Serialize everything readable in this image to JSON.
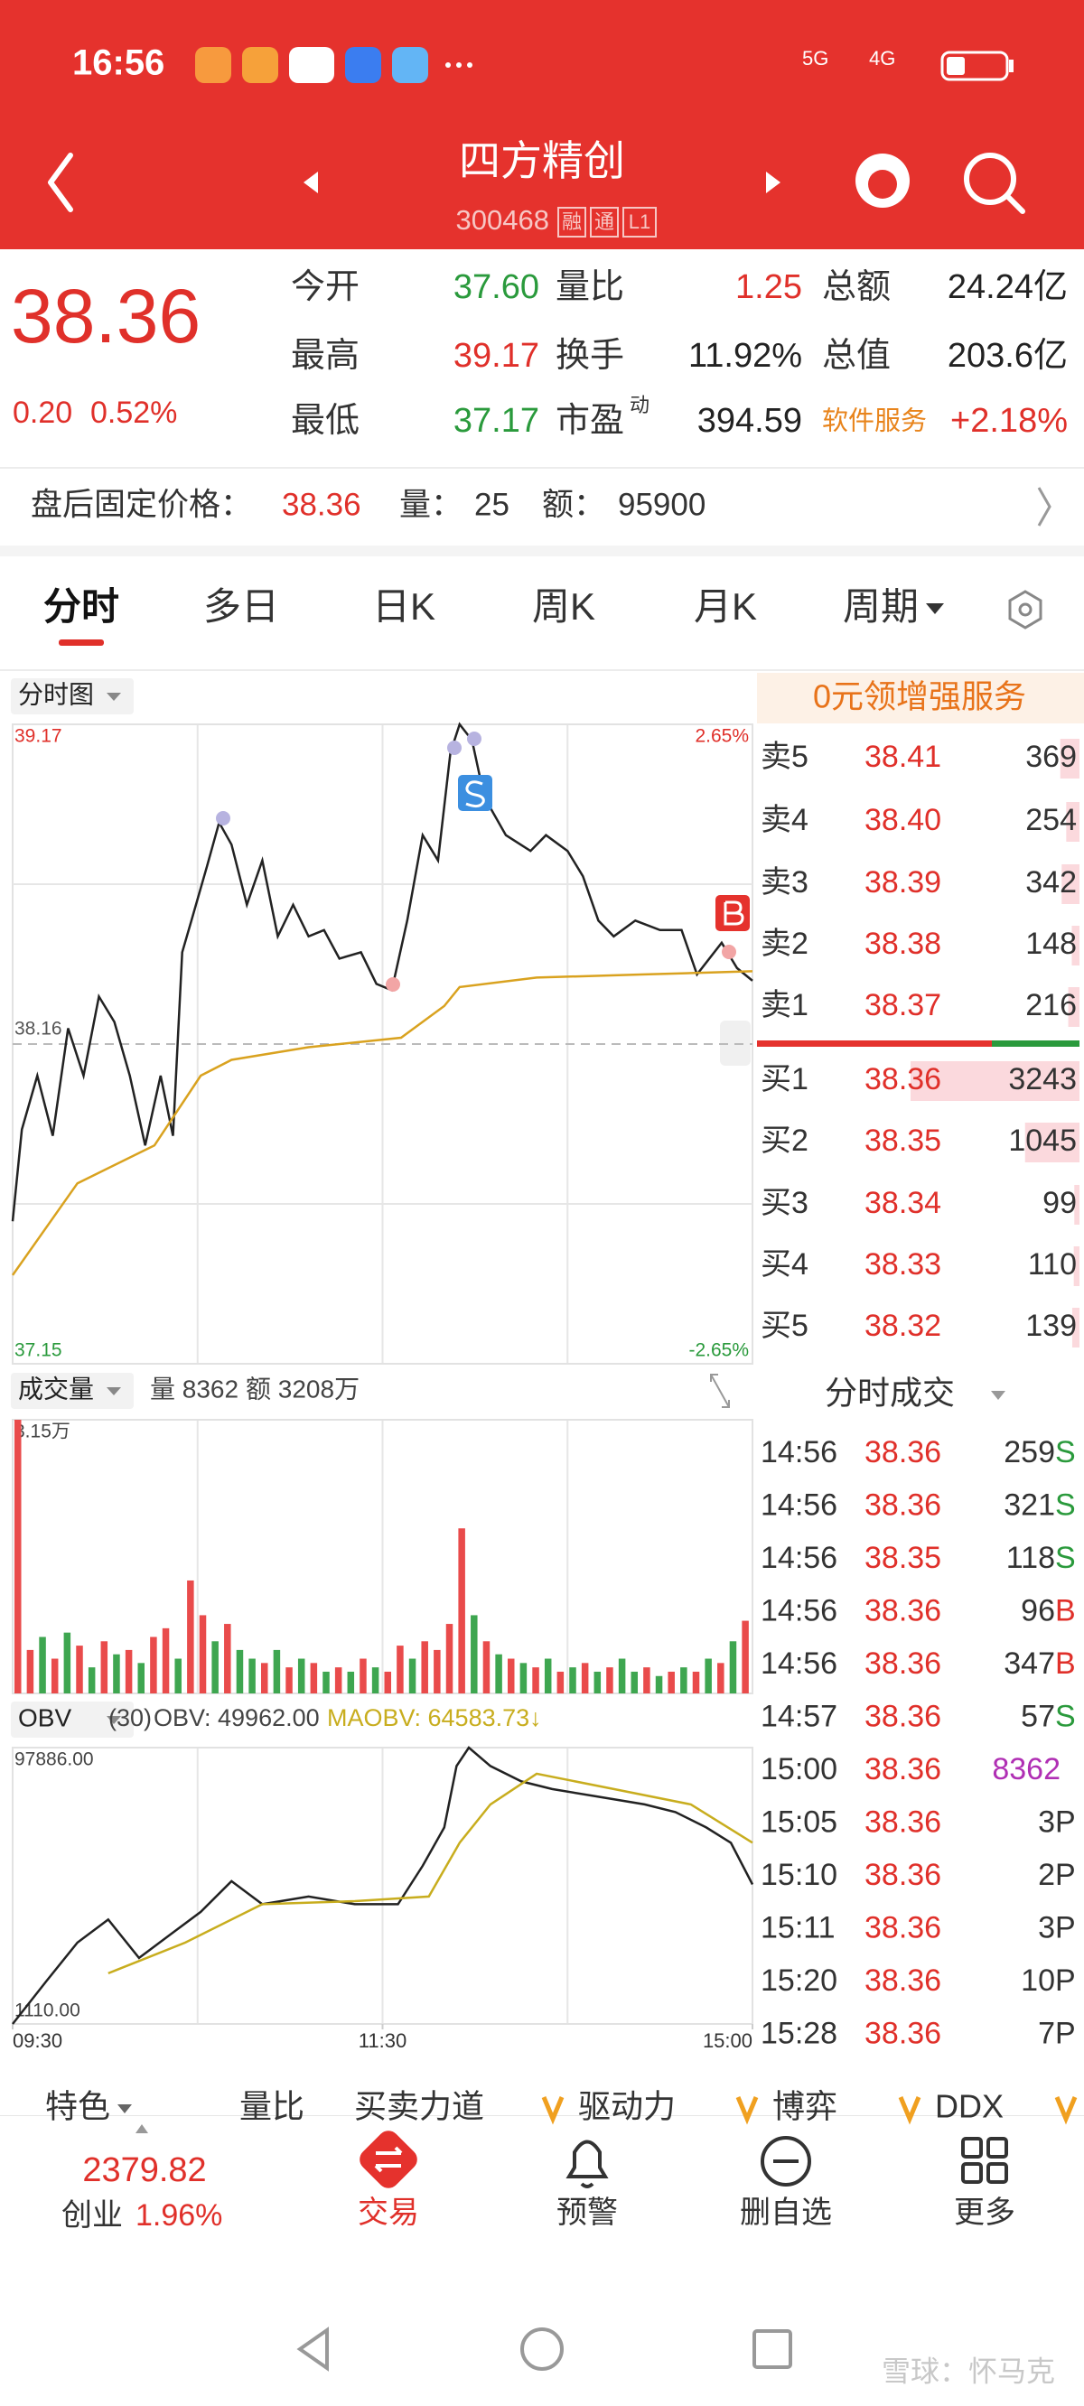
{
  "status_bar": {
    "time": "16:56",
    "net1": "5G",
    "net2": "4G"
  },
  "header": {
    "title": "四方精创",
    "code": "300468",
    "tags": [
      "融",
      "通",
      "L1"
    ]
  },
  "quote": {
    "price": "38.36",
    "change": "0.20",
    "change_pct": "0.52%",
    "rows": [
      [
        {
          "label": "今开",
          "value": "37.60",
          "color": "#2a9a3c"
        },
        {
          "label": "量比",
          "value": "1.25",
          "color": "#e0302a"
        },
        {
          "label": "总额",
          "value": "24.24亿",
          "color": "#222222"
        }
      ],
      [
        {
          "label": "最高",
          "value": "39.17",
          "color": "#e0302a"
        },
        {
          "label": "换手",
          "value": "11.92%",
          "color": "#222222"
        },
        {
          "label": "总值",
          "value": "203.6亿",
          "color": "#222222"
        }
      ],
      [
        {
          "label": "最低",
          "value": "37.17",
          "color": "#2a9a3c"
        },
        {
          "label": "市盈",
          "sup": "动",
          "value": "394.59",
          "color": "#222222"
        },
        {
          "label": "软件服务",
          "label_color": "#e8841c",
          "value": "+2.18%",
          "color": "#e0302a"
        }
      ]
    ]
  },
  "after_hours": {
    "label": "盘后固定价格：",
    "price": "38.36",
    "vol_label": "量：",
    "vol": "25",
    "amt_label": "额：",
    "amt": "95900"
  },
  "tabs": {
    "items": [
      "分时",
      "多日",
      "日K",
      "周K",
      "月K",
      "周期"
    ],
    "selected": 0
  },
  "chart_data": [
    {
      "type": "line",
      "title": "分时图",
      "xlim": [
        0,
        240
      ],
      "ylim": [
        37.15,
        39.17
      ],
      "yticks": [
        37.15,
        38.16,
        39.17
      ],
      "ytick_colors": [
        "#2a9a3c",
        "#555555",
        "#e0302a"
      ],
      "y2lim": [
        -2.65,
        2.65
      ],
      "y2ticks": [
        {
          "value": -2.65,
          "label": "-2.65%"
        },
        {
          "value": 2.65,
          "label": "2.65%"
        }
      ],
      "y2tick_colors": [
        "#2a9a3c",
        "#e0302a"
      ],
      "ygrid": [
        37.655,
        38.665
      ],
      "xgrid": [
        60,
        120,
        180
      ],
      "series": [
        {
          "name": "价格",
          "color": "#222222",
          "x": [
            0,
            3,
            8,
            13,
            18,
            23,
            28,
            33,
            38,
            43,
            48,
            52,
            55,
            58,
            63,
            67,
            71,
            76,
            81,
            86,
            91,
            96,
            101,
            106,
            113,
            118,
            123,
            128,
            133,
            138,
            142,
            145,
            149,
            153,
            160,
            168,
            173,
            180,
            185,
            190,
            195,
            202,
            210,
            217,
            222,
            230,
            235,
            240
          ],
          "values": [
            37.6,
            37.89,
            38.06,
            37.87,
            38.21,
            38.06,
            38.31,
            38.23,
            38.06,
            37.84,
            38.06,
            37.87,
            38.45,
            38.55,
            38.72,
            38.86,
            38.79,
            38.6,
            38.74,
            38.5,
            38.6,
            38.5,
            38.52,
            38.43,
            38.45,
            38.35,
            38.33,
            38.55,
            38.82,
            38.74,
            39.08,
            39.17,
            39.12,
            38.94,
            38.82,
            38.77,
            38.82,
            38.77,
            38.69,
            38.55,
            38.5,
            38.55,
            38.52,
            38.52,
            38.38,
            38.48,
            38.4,
            38.36
          ]
        },
        {
          "name": "均价",
          "color": "#d9a21f",
          "x": [
            0,
            21,
            46,
            61,
            71,
            96,
            126,
            140,
            145,
            170,
            205,
            240
          ],
          "values": [
            37.43,
            37.72,
            37.84,
            38.06,
            38.11,
            38.15,
            38.18,
            38.28,
            38.34,
            38.37,
            38.38,
            38.39
          ]
        }
      ]
    },
    {
      "type": "bar",
      "title": "成交量",
      "info": [
        "量 8362",
        "额 3208万"
      ],
      "xlim": [
        0,
        240
      ],
      "ylim": [
        0,
        31500
      ],
      "yticks": [
        {
          "value": 31500,
          "label": "3.15万"
        }
      ],
      "xgrid": [
        60,
        120,
        180
      ],
      "x": [
        0,
        4,
        8,
        12,
        16,
        20,
        24,
        28,
        32,
        36,
        40,
        44,
        48,
        52,
        56,
        60,
        64,
        68,
        72,
        76,
        80,
        84,
        88,
        92,
        96,
        100,
        104,
        108,
        112,
        116,
        120,
        124,
        128,
        132,
        136,
        140,
        144,
        148,
        152,
        156,
        160,
        164,
        168,
        172,
        176,
        180,
        184,
        188,
        192,
        196,
        200,
        204,
        208,
        212,
        216,
        220,
        224,
        228,
        232,
        236
      ],
      "values": [
        31500,
        5000,
        6500,
        4000,
        7000,
        5500,
        3000,
        6000,
        4500,
        5000,
        3500,
        6500,
        7500,
        4000,
        13000,
        9000,
        6000,
        8000,
        5000,
        4000,
        3500,
        5000,
        3000,
        4000,
        3500,
        2500,
        3000,
        2500,
        4000,
        3000,
        2500,
        5500,
        4000,
        6000,
        5000,
        8000,
        19000,
        9000,
        6000,
        4500,
        4000,
        3500,
        3000,
        4000,
        2500,
        3000,
        3500,
        2500,
        3000,
        4000,
        2500,
        3000,
        2000,
        2500,
        3000,
        2500,
        4000,
        3500,
        6000,
        8362
      ],
      "colors": [
        "#e94b4b",
        "#e94b4b",
        "#3ea650",
        "#e94b4b",
        "#3ea650",
        "#e94b4b",
        "#3ea650",
        "#e94b4b",
        "#3ea650",
        "#e94b4b",
        "#3ea650",
        "#e94b4b",
        "#e94b4b",
        "#3ea650",
        "#e94b4b",
        "#e94b4b",
        "#3ea650",
        "#e94b4b",
        "#3ea650",
        "#3ea650",
        "#e94b4b",
        "#3ea650",
        "#e94b4b",
        "#3ea650",
        "#e94b4b",
        "#3ea650",
        "#e94b4b",
        "#3ea650",
        "#e94b4b",
        "#3ea650",
        "#e94b4b",
        "#e94b4b",
        "#3ea650",
        "#e94b4b",
        "#e94b4b",
        "#e94b4b",
        "#e94b4b",
        "#3ea650",
        "#e94b4b",
        "#3ea650",
        "#e94b4b",
        "#3ea650",
        "#e94b4b",
        "#3ea650",
        "#e94b4b",
        "#3ea650",
        "#e94b4b",
        "#3ea650",
        "#e94b4b",
        "#3ea650",
        "#3ea650",
        "#e94b4b",
        "#3ea650",
        "#e94b4b",
        "#3ea650",
        "#e94b4b",
        "#3ea650",
        "#e94b4b",
        "#3ea650",
        "#e94b4b"
      ]
    },
    {
      "type": "line",
      "title": "OBV",
      "params": "(30)",
      "xlim": [
        0,
        240
      ],
      "ylim": [
        1110,
        97886
      ],
      "yticks": [
        {
          "value": 1110,
          "label": "1110.00"
        },
        {
          "value": 97886,
          "label": "97886.00"
        }
      ],
      "xgrid": [
        60,
        120,
        180
      ],
      "xticks": [
        {
          "value": 0,
          "label": "09:30"
        },
        {
          "value": 120,
          "label": "11:30"
        },
        {
          "value": 240,
          "label": "15:00"
        }
      ],
      "series": [
        {
          "name": "OBV: 49962.00",
          "color": "#222222",
          "x": [
            0,
            11,
            21,
            31,
            41,
            51,
            61,
            71,
            81,
            96,
            111,
            125,
            133,
            140,
            144,
            148,
            155,
            165,
            175,
            190,
            205,
            215,
            225,
            233,
            240
          ],
          "values": [
            1110,
            16163,
            29603,
            37667,
            24227,
            32291,
            40355,
            51107,
            43043,
            45731,
            43043,
            43043,
            56483,
            69923,
            91427,
            97886,
            91427,
            86051,
            83363,
            80675,
            77987,
            75299,
            69923,
            64547,
            49962
          ]
        },
        {
          "name": "MAOBV: 64583.73↓",
          "color": "#c8ad1e",
          "x": [
            31,
            56,
            81,
            111,
            135,
            145,
            155,
            170,
            195,
            220,
            240
          ],
          "values": [
            18851,
            29603,
            43043,
            44118,
            45731,
            64547,
            77987,
            88739,
            83363,
            77987,
            64583.73
          ]
        }
      ]
    }
  ],
  "order_book": {
    "banner": "0元领增强服务",
    "asks": [
      {
        "label": "卖5",
        "price": "38.41",
        "volume": 369
      },
      {
        "label": "卖4",
        "price": "38.40",
        "volume": 254
      },
      {
        "label": "卖3",
        "price": "38.39",
        "volume": 342
      },
      {
        "label": "卖2",
        "price": "38.38",
        "volume": 148
      },
      {
        "label": "卖1",
        "price": "38.37",
        "volume": 216
      }
    ],
    "bids": [
      {
        "label": "买1",
        "price": "38.36",
        "volume": 3243
      },
      {
        "label": "买2",
        "price": "38.35",
        "volume": 1045
      },
      {
        "label": "买3",
        "price": "38.34",
        "volume": 99
      },
      {
        "label": "买4",
        "price": "38.33",
        "volume": 110
      },
      {
        "label": "买5",
        "price": "38.32",
        "volume": 139
      }
    ]
  },
  "trades": {
    "title": "分时成交",
    "side_colors": {
      "S": "#2a9a3c",
      "B": "#e0302a",
      "P": "#333333"
    },
    "rows": [
      {
        "time": "14:56",
        "price": "38.36",
        "volume": 259,
        "side": "S"
      },
      {
        "time": "14:56",
        "price": "38.36",
        "volume": 321,
        "side": "S"
      },
      {
        "time": "14:56",
        "price": "38.35",
        "volume": 118,
        "side": "S"
      },
      {
        "time": "14:56",
        "price": "38.36",
        "volume": 96,
        "side": "B"
      },
      {
        "time": "14:56",
        "price": "38.36",
        "volume": 347,
        "side": "B"
      },
      {
        "time": "14:57",
        "price": "38.36",
        "volume": 57,
        "side": "S"
      },
      {
        "time": "15:00",
        "price": "38.36",
        "volume": 8362,
        "color": "#b02fb4"
      },
      {
        "time": "15:05",
        "price": "38.36",
        "volume": 3,
        "side": "P"
      },
      {
        "time": "15:10",
        "price": "38.36",
        "volume": 2,
        "side": "P"
      },
      {
        "time": "15:11",
        "price": "38.36",
        "volume": 3,
        "side": "P"
      },
      {
        "time": "15:20",
        "price": "38.36",
        "volume": 10,
        "side": "P"
      },
      {
        "time": "15:28",
        "price": "38.36",
        "volume": 7,
        "side": "P"
      }
    ]
  },
  "indicator_tabs": [
    {
      "text": "特色"
    },
    {
      "text": "量比"
    },
    {
      "text": "买卖力道"
    },
    {
      "text": "驱动力",
      "vip": true
    },
    {
      "text": "博弈",
      "vip": true
    },
    {
      "text": "DDX",
      "vip": true
    }
  ],
  "bottom_nav": {
    "index_value": "2379.82",
    "index_name": "创业",
    "index_pct": "1.96%",
    "items": [
      "交易",
      "预警",
      "删自选",
      "更多"
    ]
  },
  "watermark": "雪球：怀马克"
}
